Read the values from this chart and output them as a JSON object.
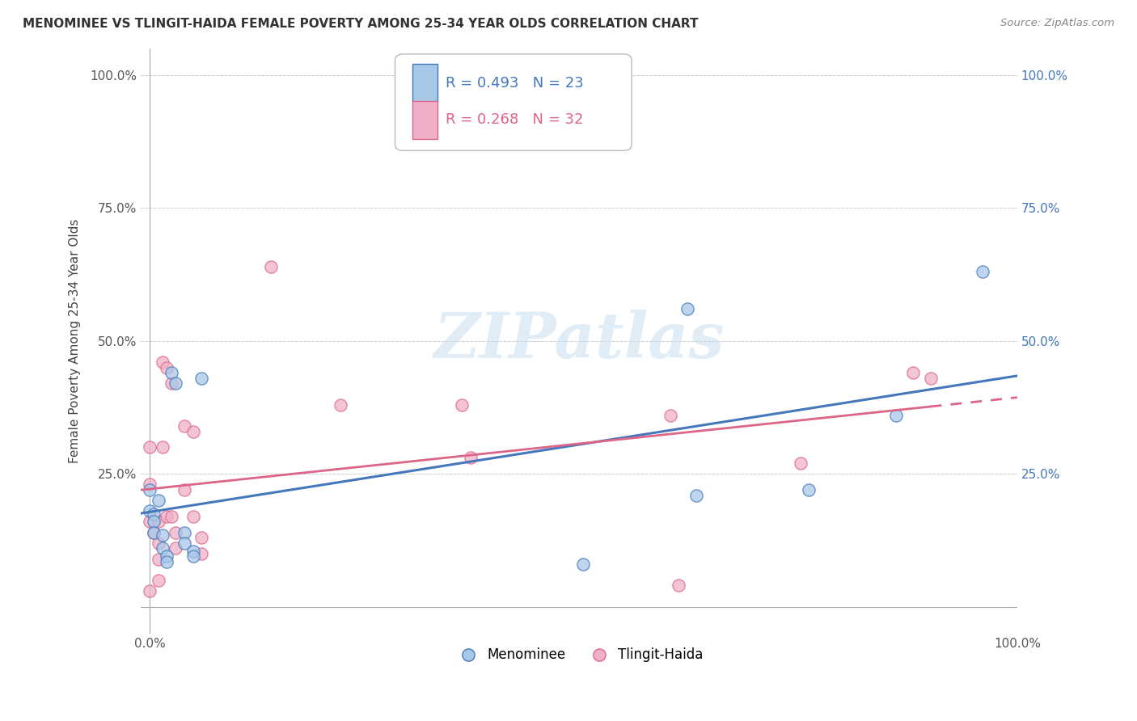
{
  "title": "MENOMINEE VS TLINGIT-HAIDA FEMALE POVERTY AMONG 25-34 YEAR OLDS CORRELATION CHART",
  "source": "Source: ZipAtlas.com",
  "ylabel": "Female Poverty Among 25-34 Year Olds",
  "xlim": [
    -0.01,
    1.0
  ],
  "ylim": [
    -0.05,
    1.05
  ],
  "menominee_color": "#a8c8e8",
  "tlingit_color": "#f0b0c8",
  "menominee_line_color": "#4477bb",
  "tlingit_line_color": "#dd6688",
  "R_menominee": 0.493,
  "N_menominee": 23,
  "R_tlingit": 0.268,
  "N_tlingit": 32,
  "menominee_x": [
    0.0,
    0.0,
    0.005,
    0.005,
    0.005,
    0.01,
    0.015,
    0.015,
    0.02,
    0.02,
    0.025,
    0.03,
    0.04,
    0.04,
    0.05,
    0.05,
    0.06,
    0.5,
    0.62,
    0.63,
    0.76,
    0.86,
    0.96
  ],
  "menominee_y": [
    0.22,
    0.18,
    0.175,
    0.16,
    0.14,
    0.2,
    0.135,
    0.11,
    0.095,
    0.085,
    0.44,
    0.42,
    0.14,
    0.12,
    0.105,
    0.095,
    0.43,
    0.08,
    0.56,
    0.21,
    0.22,
    0.36,
    0.63
  ],
  "tlingit_x": [
    0.0,
    0.0,
    0.0,
    0.0,
    0.005,
    0.01,
    0.01,
    0.01,
    0.01,
    0.015,
    0.015,
    0.02,
    0.02,
    0.025,
    0.025,
    0.03,
    0.03,
    0.04,
    0.04,
    0.05,
    0.05,
    0.06,
    0.06,
    0.14,
    0.22,
    0.36,
    0.37,
    0.6,
    0.61,
    0.75,
    0.88,
    0.9
  ],
  "tlingit_y": [
    0.3,
    0.23,
    0.16,
    0.03,
    0.14,
    0.16,
    0.12,
    0.09,
    0.05,
    0.46,
    0.3,
    0.45,
    0.17,
    0.42,
    0.17,
    0.14,
    0.11,
    0.34,
    0.22,
    0.33,
    0.17,
    0.13,
    0.1,
    0.64,
    0.38,
    0.38,
    0.28,
    0.36,
    0.04,
    0.27,
    0.44,
    0.43
  ],
  "watermark_text": "ZIPatlas",
  "background_color": "#ffffff",
  "grid_color": "#cccccc",
  "marker_size": 120,
  "marker_alpha": 0.75
}
